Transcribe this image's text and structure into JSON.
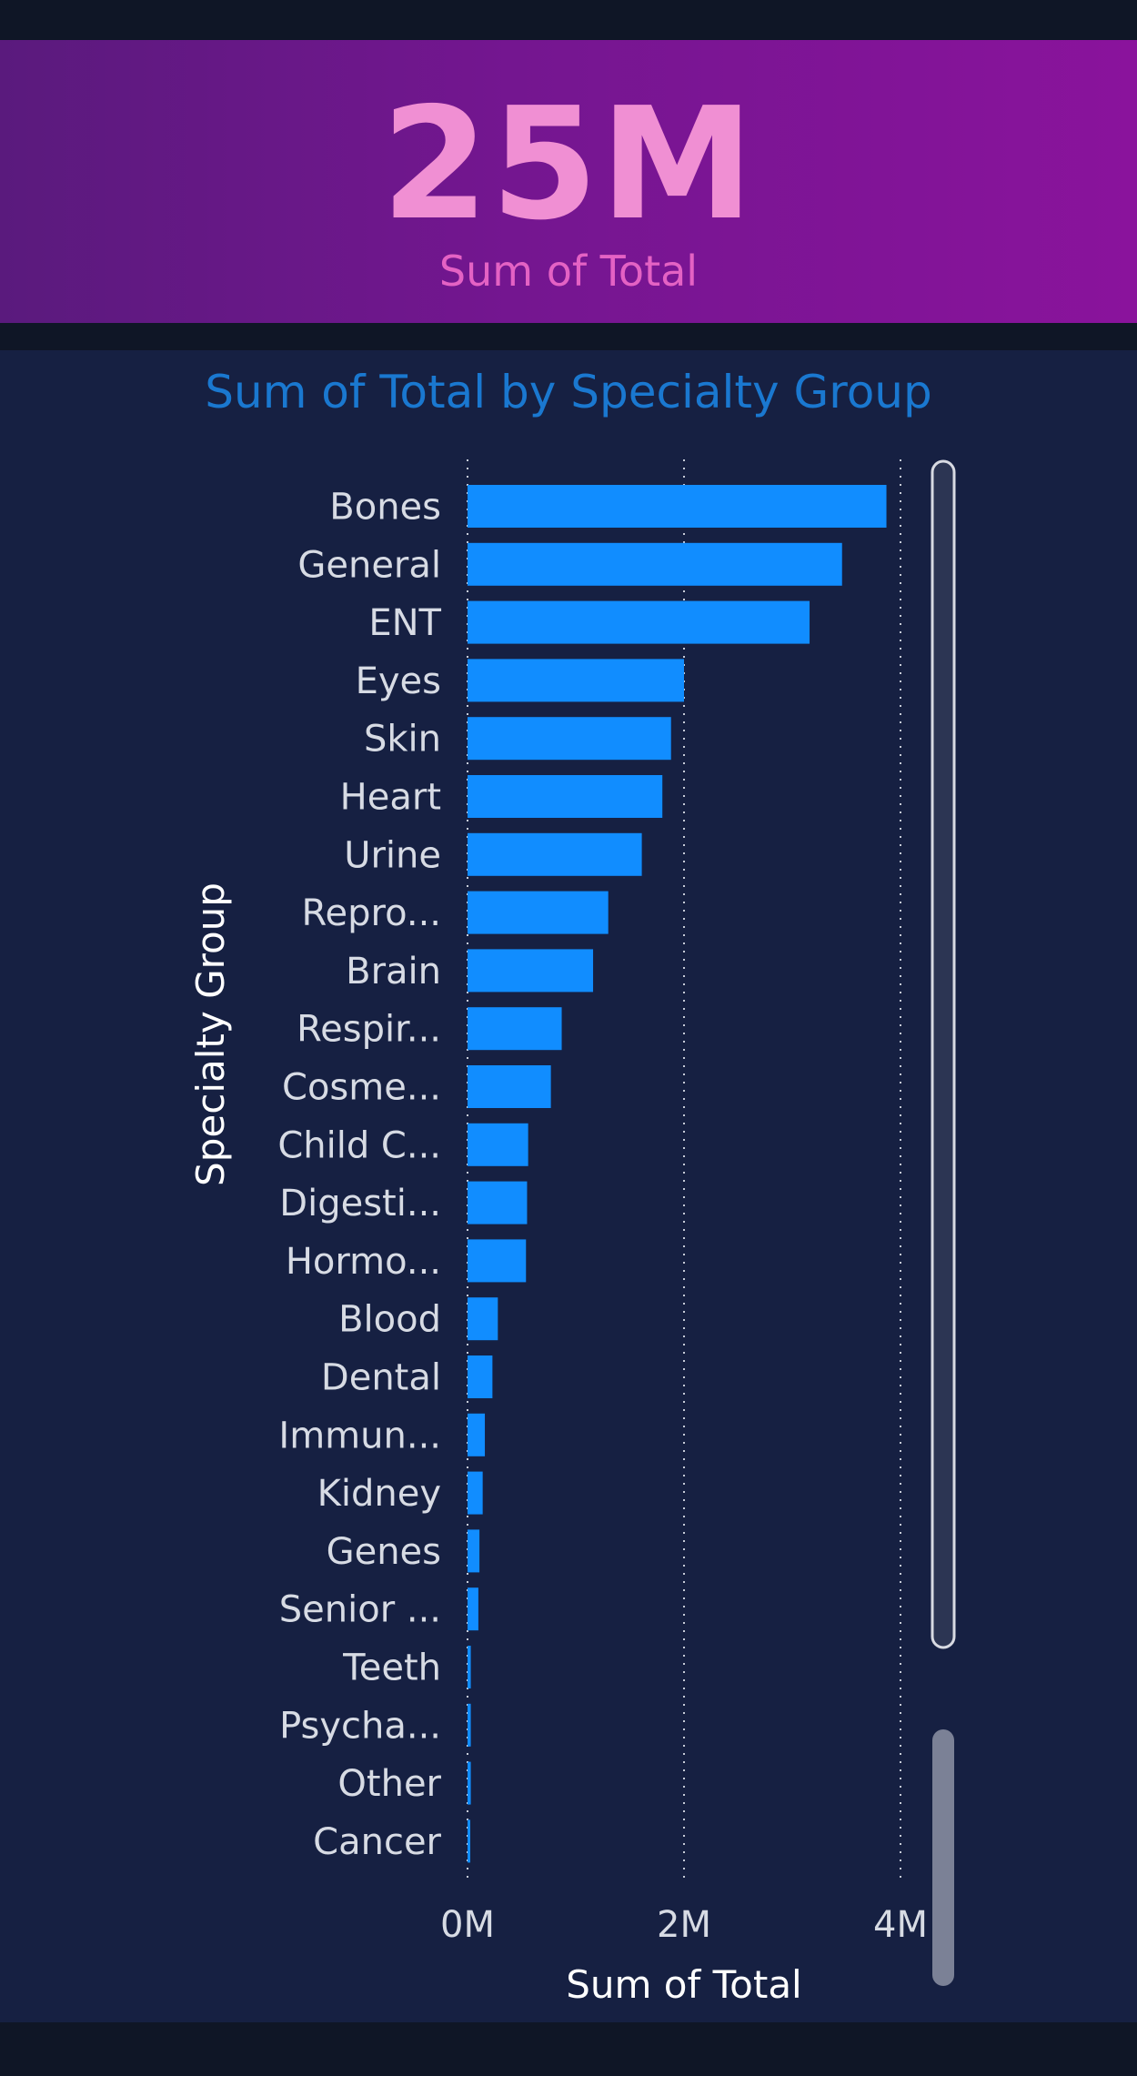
{
  "kpi": {
    "value": "25M",
    "label": "Sum of Total"
  },
  "chart_data": {
    "type": "bar",
    "orientation": "horizontal",
    "title": "Sum of Total by Specialty Group",
    "xlabel": "Sum of Total",
    "ylabel": "Specialty Group",
    "categories": [
      "Bones",
      "General",
      "ENT",
      "Eyes",
      "Skin",
      "Heart",
      "Urine",
      "Repro...",
      "Brain",
      "Respir...",
      "Cosme...",
      "Child C...",
      "Digesti...",
      "Hormo...",
      "Blood",
      "Dental",
      "Immun...",
      "Kidney",
      "Genes",
      "Senior ...",
      "Teeth",
      "Psycha...",
      "Other",
      "Cancer"
    ],
    "values": [
      3870000,
      3460000,
      3160000,
      2000000,
      1880000,
      1800000,
      1610000,
      1300000,
      1160000,
      870000,
      770000,
      560000,
      550000,
      540000,
      280000,
      230000,
      160000,
      140000,
      110000,
      100000,
      30000,
      30000,
      30000,
      20000
    ],
    "xlim": [
      0,
      4000000
    ],
    "xticks": [
      {
        "value": 0,
        "label": "0M"
      },
      {
        "value": 2000000,
        "label": "2M"
      },
      {
        "value": 4000000,
        "label": "4M"
      }
    ],
    "grid": true,
    "bar_color": "#118dff",
    "scrollbar": true
  },
  "colors": {
    "kpi_value": "#f08fd3",
    "kpi_label": "#e462c4",
    "title": "#1a78d0",
    "background": "#162042"
  }
}
